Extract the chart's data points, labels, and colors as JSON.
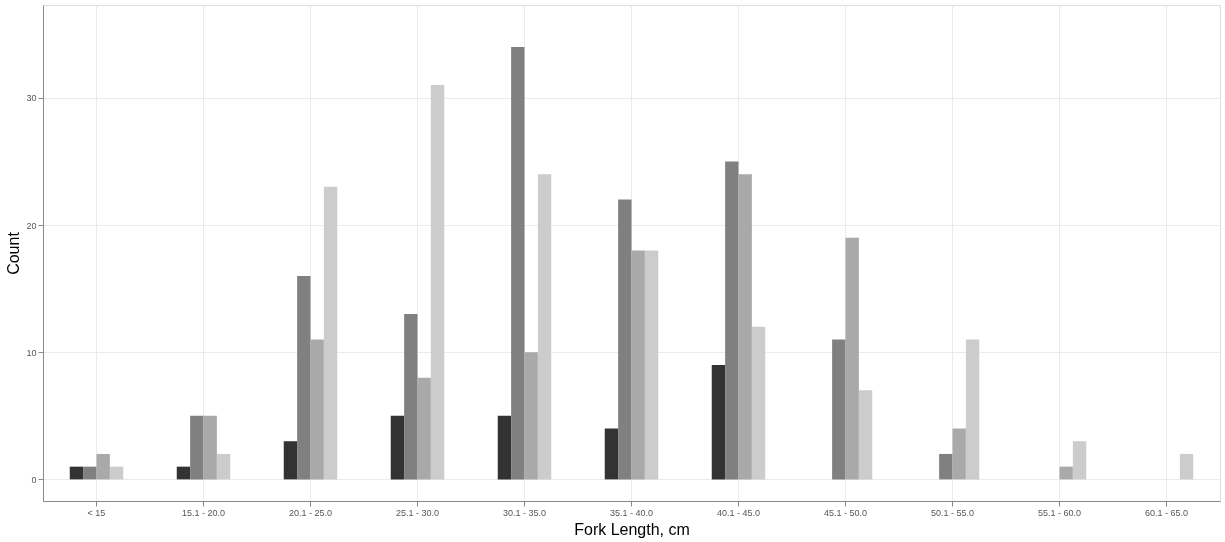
{
  "chart_data": {
    "type": "bar",
    "xlabel": "Fork Length, cm",
    "ylabel": "Count",
    "categories": [
      "< 15",
      "15.1 - 20.0",
      "20.1 - 25.0",
      "25.1 - 30.0",
      "30.1 - 35.0",
      "35.1 - 40.0",
      "40.1 - 45.0",
      "45.1 - 50.0",
      "50.1 - 55.0",
      "55.1 - 60.0",
      "60.1 - 65.0"
    ],
    "series": [
      {
        "color": "#333333",
        "values": [
          1,
          1,
          3,
          5,
          5,
          4,
          9,
          null,
          null,
          null,
          null
        ]
      },
      {
        "color": "#808080",
        "values": [
          1,
          5,
          16,
          13,
          34,
          22,
          25,
          11,
          2,
          null,
          null
        ]
      },
      {
        "color": "#a9a9a9",
        "values": [
          2,
          5,
          11,
          8,
          10,
          18,
          24,
          19,
          4,
          1,
          null
        ]
      },
      {
        "color": "#cccccc",
        "values": [
          1,
          2,
          23,
          31,
          24,
          18,
          12,
          7,
          11,
          3,
          2
        ]
      }
    ],
    "ylim": [
      -1.7,
      37.3
    ],
    "yticks": [
      0,
      10,
      20,
      30
    ],
    "grid": true,
    "legend": false
  }
}
